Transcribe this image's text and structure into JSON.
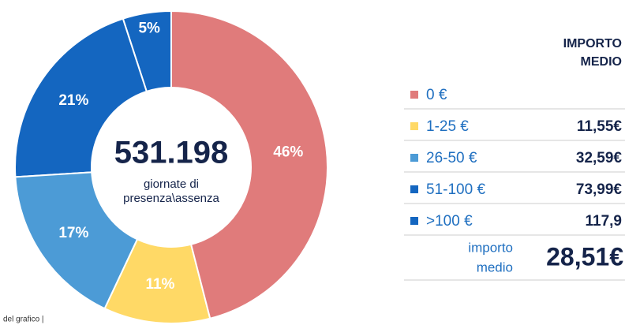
{
  "chart_data": {
    "type": "pie",
    "center_value": "531.198",
    "center_text": [
      "giornate di",
      "presenza\\assenza"
    ],
    "categories": [
      "0 €",
      "1-25 €",
      "26-50 €",
      "51-100 €",
      ">100 €"
    ],
    "values": [
      46,
      11,
      17,
      21,
      5
    ],
    "value_labels": [
      "46%",
      "11%",
      "17%",
      "21%",
      "5%"
    ],
    "colors": [
      "#e07b7b",
      "#ffd966",
      "#4c9bd6",
      "#1466c0",
      "#1466c0"
    ],
    "amount_header": [
      "IMPORTO",
      "MEDIO"
    ],
    "amounts": [
      null,
      "11,55€",
      "32,59€",
      "73,99€",
      "117,9"
    ],
    "total_label": [
      "importo",
      "medio"
    ],
    "total_amount": "28,51€",
    "footnote": "del grafico |"
  }
}
